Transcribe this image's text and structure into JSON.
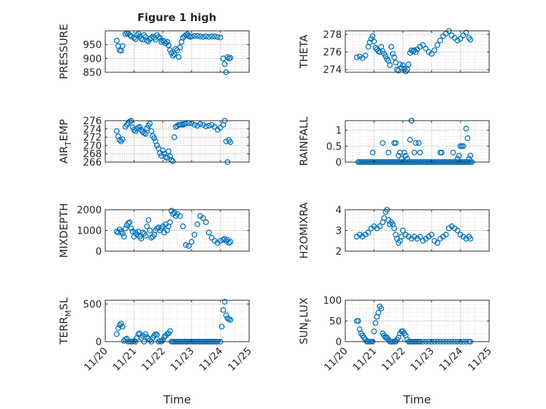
{
  "figure": {
    "title": "Figure 1 high"
  },
  "style": {
    "marker_color": "#0072BD",
    "axis_color": "#262626",
    "grid_color": "#d9d9d9"
  },
  "time_axis": {
    "min": "11/20",
    "max": "11/25",
    "ticks": [
      "11/20",
      "11/21",
      "11/22",
      "11/23",
      "11/24",
      "11/25"
    ],
    "label": "Time"
  },
  "chart_data": [
    {
      "type": "scatter",
      "ylabel": "PRESSURE",
      "ylim": [
        850,
        1000
      ],
      "yticks": [
        850,
        900,
        950
      ],
      "grid": true,
      "marker": "circle",
      "x": [
        20.4,
        20.45,
        20.5,
        20.55,
        20.6,
        20.7,
        20.75,
        20.8,
        20.85,
        20.9,
        21.0,
        21.05,
        21.1,
        21.15,
        21.2,
        21.25,
        21.3,
        21.35,
        21.4,
        21.45,
        21.5,
        21.55,
        21.6,
        21.65,
        21.7,
        21.75,
        21.8,
        21.85,
        21.9,
        21.95,
        22.0,
        22.05,
        22.1,
        22.15,
        22.2,
        22.25,
        22.3,
        22.35,
        22.4,
        22.45,
        22.5,
        22.55,
        22.6,
        22.65,
        22.7,
        22.75,
        22.8,
        22.85,
        22.9,
        22.95,
        23.0,
        23.1,
        23.2,
        23.3,
        23.4,
        23.5,
        23.6,
        23.7,
        23.8,
        23.9,
        24.0,
        24.1,
        24.15,
        24.2,
        24.25,
        24.3,
        24.35
      ],
      "y": [
        965,
        945,
        930,
        928,
        945,
        988,
        992,
        990,
        985,
        980,
        975,
        970,
        985,
        990,
        980,
        972,
        968,
        985,
        978,
        965,
        962,
        970,
        975,
        980,
        975,
        968,
        985,
        978,
        975,
        960,
        965,
        962,
        955,
        960,
        948,
        930,
        920,
        910,
        915,
        935,
        930,
        905,
        940,
        960,
        975,
        980,
        985,
        988,
        982,
        978,
        980,
        982,
        982,
        980,
        978,
        980,
        978,
        980,
        980,
        978,
        976,
        900,
        880,
        850,
        905,
        900,
        902
      ]
    },
    {
      "type": "scatter",
      "ylabel": "THETA",
      "ylim": [
        273.7,
        278.4
      ],
      "yticks": [
        274,
        276,
        278
      ],
      "grid": true,
      "marker": "circle",
      "x": [
        20.4,
        20.5,
        20.6,
        20.7,
        20.8,
        20.85,
        20.9,
        20.95,
        21.0,
        21.05,
        21.1,
        21.15,
        21.2,
        21.25,
        21.3,
        21.35,
        21.4,
        21.45,
        21.5,
        21.55,
        21.6,
        21.65,
        21.7,
        21.75,
        21.8,
        21.85,
        21.9,
        21.95,
        22.0,
        22.05,
        22.1,
        22.15,
        22.2,
        22.25,
        22.3,
        22.35,
        22.4,
        22.45,
        22.5,
        22.6,
        22.7,
        22.8,
        22.9,
        23.0,
        23.1,
        23.2,
        23.3,
        23.4,
        23.5,
        23.6,
        23.7,
        23.8,
        23.9,
        24.0,
        24.1,
        24.2,
        24.3,
        24.35
      ],
      "y": [
        275.4,
        275.5,
        275.3,
        275.6,
        276.6,
        277.1,
        277.5,
        277.8,
        277.2,
        276.5,
        276.3,
        276.1,
        276.0,
        276.6,
        276.1,
        275.8,
        275.5,
        275.2,
        275.0,
        274.5,
        276.6,
        275.8,
        275.4,
        274.8,
        274.0,
        273.9,
        274.6,
        274.2,
        274.5,
        274.1,
        273.8,
        274.0,
        274.6,
        275.9,
        276.2,
        276.1,
        276.2,
        276.0,
        276.3,
        276.6,
        276.8,
        276.4,
        276.0,
        275.8,
        276.2,
        276.8,
        277.3,
        277.8,
        278.1,
        278.4,
        277.9,
        277.6,
        277.3,
        277.5,
        277.9,
        278.2,
        277.6,
        277.4
      ]
    },
    {
      "type": "scatter",
      "ylabel": "AIR_TEMP",
      "ylim": [
        266,
        276
      ],
      "yticks": [
        266,
        268,
        270,
        272,
        274,
        276
      ],
      "grid": true,
      "marker": "circle",
      "x": [
        20.4,
        20.45,
        20.5,
        20.55,
        20.6,
        20.7,
        20.75,
        20.8,
        20.85,
        20.9,
        20.95,
        21.0,
        21.05,
        21.1,
        21.15,
        21.2,
        21.25,
        21.3,
        21.35,
        21.4,
        21.45,
        21.5,
        21.55,
        21.6,
        21.65,
        21.7,
        21.75,
        21.8,
        21.85,
        21.9,
        21.95,
        22.0,
        22.05,
        22.1,
        22.15,
        22.2,
        22.25,
        22.3,
        22.35,
        22.4,
        22.45,
        22.5,
        22.55,
        22.6,
        22.65,
        22.7,
        22.75,
        22.8,
        22.9,
        23.0,
        23.1,
        23.2,
        23.3,
        23.4,
        23.5,
        23.6,
        23.7,
        23.8,
        23.9,
        24.0,
        24.1,
        24.15,
        24.2,
        24.25,
        24.3,
        24.35
      ],
      "y": [
        273.5,
        272.2,
        271.3,
        271.0,
        271.5,
        274.5,
        275.0,
        275.4,
        275.8,
        276.0,
        274.4,
        273.8,
        273.5,
        274.0,
        274.3,
        274.5,
        273.8,
        273.3,
        273.0,
        272.8,
        274.2,
        274.8,
        275.3,
        273.5,
        272.3,
        271.8,
        271.0,
        270.0,
        269.3,
        268.2,
        267.5,
        268.8,
        268.0,
        267.2,
        267.0,
        268.6,
        267.4,
        266.5,
        266.2,
        272.0,
        274.5,
        274.7,
        275.0,
        275.0,
        275.1,
        275.0,
        275.2,
        275.3,
        275.4,
        275.4,
        275.0,
        274.8,
        275.2,
        275.0,
        274.6,
        274.8,
        275.0,
        274.5,
        273.8,
        274.3,
        275.0,
        276.0,
        271.0,
        266.0,
        271.3,
        270.8
      ]
    },
    {
      "type": "scatter",
      "ylabel": "RAINFALL",
      "ylim": [
        0,
        1.3
      ],
      "yticks": [
        0,
        0.5,
        1
      ],
      "grid": true,
      "marker": "circle",
      "x": [
        20.45,
        20.5,
        20.55,
        20.6,
        20.65,
        20.7,
        20.75,
        20.8,
        20.85,
        20.9,
        20.95,
        21.0,
        21.05,
        21.1,
        21.15,
        21.2,
        21.25,
        21.3,
        21.35,
        21.4,
        21.45,
        21.5,
        21.55,
        21.6,
        21.65,
        21.7,
        21.75,
        21.8,
        21.85,
        21.9,
        21.95,
        22.0,
        22.05,
        22.1,
        22.15,
        22.2,
        22.25,
        22.3,
        22.35,
        22.4,
        22.45,
        22.5,
        22.55,
        22.6,
        22.65,
        22.7,
        22.75,
        22.8,
        22.85,
        22.9,
        22.95,
        23.0,
        23.05,
        23.1,
        23.15,
        23.2,
        23.25,
        23.3,
        23.35,
        23.4,
        23.45,
        23.5,
        23.55,
        23.6,
        23.65,
        23.7,
        23.75,
        23.8,
        23.85,
        23.9,
        23.95,
        24.0,
        24.05,
        24.1,
        24.15,
        24.2,
        24.25,
        24.3,
        24.35,
        24.4,
        20.95,
        21.3,
        21.5,
        21.7,
        21.75,
        21.85,
        21.9,
        21.95,
        22.05,
        22.15,
        22.25,
        22.3,
        22.45,
        22.55,
        22.6,
        23.3,
        23.35,
        23.75,
        23.95,
        24.05,
        24.1,
        24.2,
        24.25,
        24.3,
        24.35,
        22.3,
        22.4,
        22.1,
        23.9,
        24.0
      ],
      "y": [
        0,
        0,
        0,
        0,
        0,
        0,
        0,
        0,
        0,
        0,
        0,
        0,
        0,
        0,
        0,
        0,
        0,
        0,
        0,
        0,
        0,
        0,
        0,
        0,
        0,
        0,
        0,
        0,
        0,
        0,
        0,
        0,
        0,
        0,
        0,
        0,
        0,
        0,
        0,
        0,
        0,
        0,
        0,
        0,
        0,
        0,
        0,
        0,
        0,
        0,
        0,
        0,
        0,
        0,
        0,
        0,
        0,
        0,
        0,
        0,
        0,
        0,
        0,
        0,
        0,
        0,
        0,
        0,
        0,
        0,
        0,
        0,
        0,
        0,
        0,
        0,
        0,
        0,
        0,
        0,
        0.3,
        0.6,
        0.3,
        0.6,
        0.6,
        0.2,
        0.3,
        0.1,
        0.3,
        0.1,
        0.7,
        1.3,
        0.6,
        0.6,
        0.3,
        0.3,
        0.3,
        0.3,
        0.2,
        0.5,
        0.5,
        1.05,
        0.75,
        0.1,
        0.2,
        1.3,
        0.3,
        0.2,
        0.1,
        0.5
      ]
    },
    {
      "type": "scatter",
      "ylabel": "MIXDEPTH",
      "ylim": [
        0,
        2000
      ],
      "yticks": [
        0,
        1000,
        2000
      ],
      "grid": true,
      "marker": "circle",
      "x": [
        20.4,
        20.45,
        20.5,
        20.55,
        20.6,
        20.65,
        20.7,
        20.75,
        20.8,
        20.85,
        20.9,
        20.95,
        21.0,
        21.05,
        21.1,
        21.15,
        21.2,
        21.25,
        21.3,
        21.35,
        21.4,
        21.45,
        21.5,
        21.55,
        21.6,
        21.65,
        21.7,
        21.75,
        21.8,
        21.85,
        21.9,
        21.95,
        22.0,
        22.05,
        22.1,
        22.15,
        22.2,
        22.25,
        22.3,
        22.35,
        22.4,
        22.45,
        22.5,
        22.6,
        22.7,
        22.8,
        22.9,
        23.0,
        23.1,
        23.2,
        23.3,
        23.4,
        23.5,
        23.6,
        23.7,
        23.8,
        23.9,
        24.0,
        24.1,
        24.15,
        24.2,
        24.25,
        24.3,
        24.35
      ],
      "y": [
        950,
        900,
        1050,
        950,
        850,
        700,
        1100,
        1250,
        1350,
        1400,
        1100,
        950,
        700,
        900,
        800,
        950,
        700,
        600,
        900,
        850,
        750,
        1200,
        1500,
        1000,
        650,
        700,
        800,
        1000,
        1100,
        1150,
        1000,
        1100,
        1200,
        900,
        1300,
        1000,
        1200,
        1400,
        1950,
        1800,
        1850,
        1700,
        1800,
        1700,
        1200,
        300,
        250,
        450,
        800,
        1300,
        1700,
        1600,
        1400,
        900,
        650,
        500,
        400,
        500,
        550,
        600,
        500,
        550,
        400,
        450
      ]
    },
    {
      "type": "scatter",
      "ylabel": "H2OMIXRA",
      "ylim": [
        2,
        4
      ],
      "yticks": [
        2,
        3,
        4
      ],
      "grid": true,
      "marker": "circle",
      "x": [
        20.4,
        20.5,
        20.6,
        20.7,
        20.8,
        20.9,
        21.0,
        21.1,
        21.2,
        21.3,
        21.35,
        21.4,
        21.45,
        21.5,
        21.55,
        21.6,
        21.65,
        21.7,
        21.75,
        21.8,
        21.85,
        21.9,
        21.95,
        22.0,
        22.1,
        22.2,
        22.3,
        22.4,
        22.5,
        22.6,
        22.7,
        22.8,
        22.9,
        23.0,
        23.1,
        23.2,
        23.3,
        23.4,
        23.5,
        23.6,
        23.7,
        23.8,
        23.9,
        24.0,
        24.1,
        24.2,
        24.3,
        24.35
      ],
      "y": [
        2.7,
        2.8,
        2.7,
        2.8,
        2.9,
        3.1,
        3.2,
        3.1,
        3.2,
        3.4,
        3.6,
        3.9,
        4.0,
        3.5,
        3.3,
        3.4,
        3.3,
        3.1,
        2.8,
        2.6,
        2.4,
        2.5,
        2.7,
        3.0,
        2.8,
        2.7,
        2.6,
        2.7,
        2.6,
        2.7,
        2.5,
        2.6,
        2.7,
        2.8,
        2.5,
        2.4,
        2.6,
        2.7,
        2.8,
        3.1,
        3.2,
        3.1,
        3.0,
        2.8,
        2.7,
        2.6,
        2.7,
        2.6
      ]
    },
    {
      "type": "scatter",
      "ylabel": "TERR_MSL",
      "ylim": [
        0,
        550
      ],
      "yticks": [
        0,
        500
      ],
      "grid": true,
      "marker": "circle",
      "x": [
        20.4,
        20.45,
        20.5,
        20.55,
        20.6,
        20.65,
        20.7,
        20.75,
        20.8,
        20.85,
        20.9,
        20.95,
        21.0,
        21.05,
        21.1,
        21.15,
        21.2,
        21.25,
        21.3,
        21.35,
        21.4,
        21.45,
        21.5,
        21.55,
        21.6,
        21.65,
        21.7,
        21.75,
        21.8,
        21.85,
        21.9,
        21.95,
        22.0,
        22.05,
        22.1,
        22.15,
        22.2,
        22.25,
        22.3,
        22.35,
        22.4,
        22.45,
        22.5,
        22.55,
        22.6,
        22.65,
        22.7,
        22.75,
        22.8,
        22.85,
        22.9,
        22.95,
        23.0,
        23.05,
        23.1,
        23.15,
        23.2,
        23.25,
        23.3,
        23.35,
        23.4,
        23.45,
        23.5,
        23.55,
        23.6,
        23.65,
        23.7,
        23.75,
        23.8,
        23.85,
        23.9,
        24.0,
        24.05,
        24.1,
        24.15,
        24.2,
        24.25,
        24.3,
        24.35
      ],
      "y": [
        100,
        180,
        220,
        240,
        200,
        10,
        30,
        40,
        0,
        0,
        0,
        0,
        10,
        0,
        50,
        100,
        110,
        50,
        80,
        0,
        100,
        60,
        40,
        20,
        0,
        50,
        80,
        100,
        90,
        0,
        10,
        0,
        20,
        60,
        80,
        100,
        110,
        140,
        0,
        0,
        0,
        0,
        0,
        0,
        0,
        0,
        0,
        0,
        0,
        0,
        0,
        0,
        0,
        0,
        0,
        0,
        0,
        0,
        0,
        0,
        0,
        0,
        0,
        0,
        0,
        0,
        0,
        0,
        0,
        0,
        0,
        0,
        200,
        420,
        530,
        350,
        310,
        300,
        290
      ]
    },
    {
      "type": "scatter",
      "ylabel": "SUN_FLUX",
      "ylim": [
        0,
        100
      ],
      "yticks": [
        0,
        50,
        100
      ],
      "grid": true,
      "marker": "circle",
      "x": [
        20.4,
        20.45,
        20.5,
        20.55,
        20.6,
        20.65,
        20.7,
        20.75,
        20.8,
        20.85,
        20.9,
        20.95,
        21.0,
        21.05,
        21.1,
        21.15,
        21.2,
        21.25,
        21.3,
        21.35,
        21.4,
        21.45,
        21.5,
        21.55,
        21.6,
        21.65,
        21.7,
        21.75,
        21.8,
        21.85,
        21.9,
        21.95,
        22.0,
        22.05,
        22.1,
        22.15,
        22.2,
        22.25,
        22.3,
        22.35,
        22.4,
        22.45,
        22.5,
        22.55,
        22.6,
        22.7,
        22.8,
        22.9,
        23.0,
        23.1,
        23.2,
        23.3,
        23.4,
        23.5,
        23.6,
        23.7,
        23.8,
        23.9,
        24.0,
        24.1,
        24.2,
        24.3,
        24.35
      ],
      "y": [
        50,
        50,
        30,
        20,
        15,
        10,
        5,
        0,
        0,
        0,
        0,
        0,
        25,
        45,
        60,
        70,
        85,
        80,
        20,
        15,
        10,
        10,
        5,
        0,
        0,
        0,
        0,
        0,
        5,
        10,
        20,
        25,
        25,
        20,
        15,
        5,
        0,
        0,
        0,
        0,
        0,
        0,
        0,
        0,
        0,
        0,
        0,
        0,
        0,
        0,
        0,
        0,
        0,
        0,
        0,
        0,
        0,
        0,
        0,
        0,
        0,
        0,
        0
      ]
    }
  ]
}
